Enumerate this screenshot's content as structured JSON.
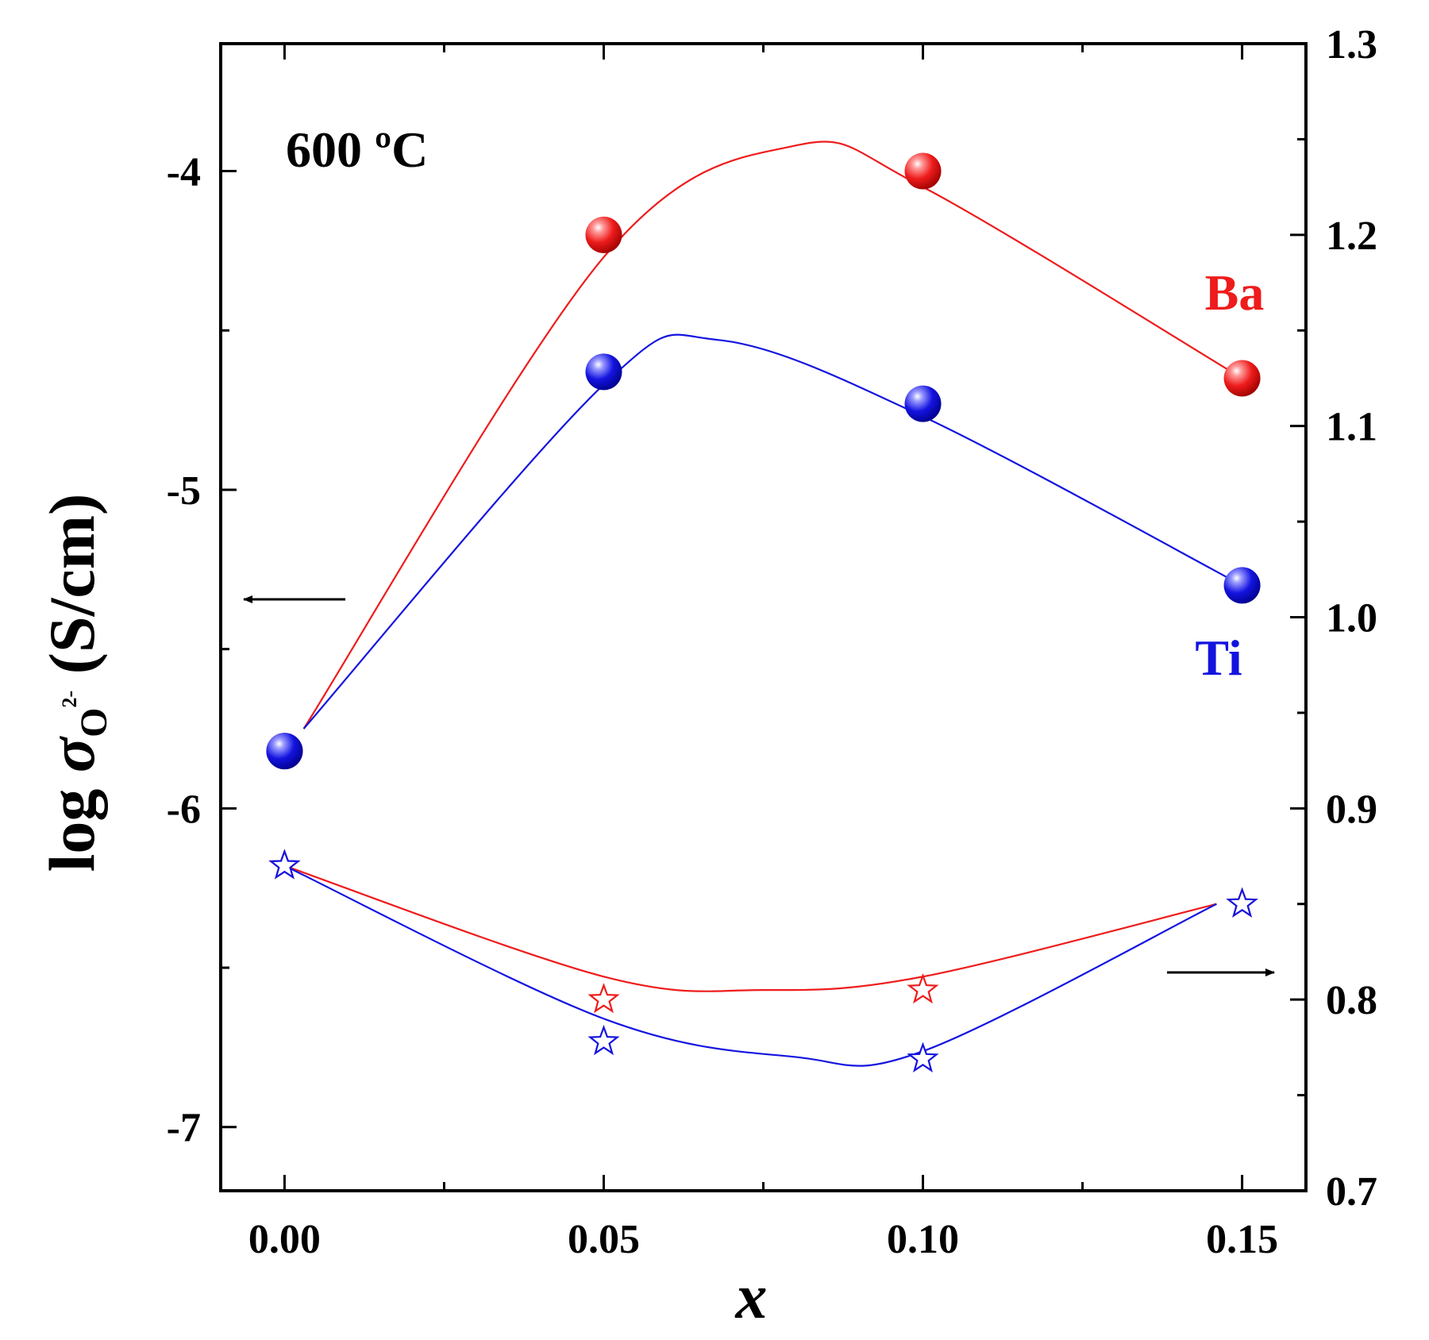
{
  "chart_data": {
    "type": "scatter",
    "annotation": "600 ºC",
    "xlabel": "x",
    "ylabel_left": {
      "prefix": "log ",
      "sigma": "σ",
      "sub": "O",
      "sup": "2-",
      "unit": " (S/cm)"
    },
    "xlim": [
      -0.01,
      0.16
    ],
    "ylim_left": [
      -7.2,
      -3.6
    ],
    "ylim_right": [
      0.7,
      1.3
    ],
    "x_ticks": [
      {
        "value": 0.0,
        "label": "0.00"
      },
      {
        "value": 0.05,
        "label": "0.05"
      },
      {
        "value": 0.1,
        "label": "0.10"
      },
      {
        "value": 0.15,
        "label": "0.15"
      }
    ],
    "y_left_ticks": [
      {
        "value": -4,
        "label": "-4"
      },
      {
        "value": -5,
        "label": "-5"
      },
      {
        "value": -6,
        "label": "-6"
      },
      {
        "value": -7,
        "label": "-7"
      }
    ],
    "y_right_ticks": [
      {
        "value": 0.7,
        "label": "0.7"
      },
      {
        "value": 0.8,
        "label": "0.8"
      },
      {
        "value": 0.9,
        "label": "0.9"
      },
      {
        "value": 1.0,
        "label": "1.0"
      },
      {
        "value": 1.1,
        "label": "1.1"
      },
      {
        "value": 1.2,
        "label": "1.2"
      },
      {
        "value": 1.3,
        "label": "1.3"
      }
    ],
    "series": [
      {
        "name": "Ba",
        "color": "#ee1c1c",
        "axis": "left",
        "marker": "sphere",
        "x": [
          0.0,
          0.05,
          0.1,
          0.15
        ],
        "y": [
          -5.82,
          -4.2,
          -4.0,
          -4.65
        ],
        "curve": [
          [
            0.003,
            -5.75
          ],
          [
            0.05,
            -4.27
          ],
          [
            0.08,
            -3.92
          ],
          [
            0.1,
            -4.05
          ],
          [
            0.15,
            -4.65
          ]
        ]
      },
      {
        "name": "Ti",
        "color": "#1414e0",
        "axis": "left",
        "marker": "sphere",
        "x": [
          0.0,
          0.05,
          0.1,
          0.15
        ],
        "y": [
          -5.82,
          -4.63,
          -4.73,
          -5.3
        ],
        "curve": [
          [
            0.003,
            -5.75
          ],
          [
            0.05,
            -4.67
          ],
          [
            0.068,
            -4.53
          ],
          [
            0.1,
            -4.77
          ],
          [
            0.15,
            -5.3
          ]
        ]
      },
      {
        "name": "Ba",
        "color": "#ee1c1c",
        "axis": "right",
        "marker": "star",
        "x": [
          0.0,
          0.05,
          0.1,
          0.15
        ],
        "y": [
          0.87,
          0.8,
          0.805,
          0.85
        ],
        "curve": [
          [
            0.0,
            0.87
          ],
          [
            0.05,
            0.812
          ],
          [
            0.075,
            0.805
          ],
          [
            0.1,
            0.812
          ],
          [
            0.146,
            0.85
          ]
        ]
      },
      {
        "name": "Ti",
        "color": "#1414e0",
        "axis": "right",
        "marker": "star",
        "x": [
          0.0,
          0.05,
          0.1,
          0.15
        ],
        "y": [
          0.87,
          0.778,
          0.769,
          0.85
        ],
        "curve": [
          [
            0.0,
            0.87
          ],
          [
            0.05,
            0.79
          ],
          [
            0.08,
            0.77
          ],
          [
            0.1,
            0.773
          ],
          [
            0.146,
            0.85
          ]
        ]
      }
    ],
    "legend_labels": [
      {
        "text": "Ba",
        "color": "#ee1c1c"
      },
      {
        "text": "Ti",
        "color": "#1414e0"
      }
    ],
    "arrows": [
      {
        "direction": "left",
        "points_to": "left axis"
      },
      {
        "direction": "right",
        "points_to": "right axis"
      }
    ]
  }
}
